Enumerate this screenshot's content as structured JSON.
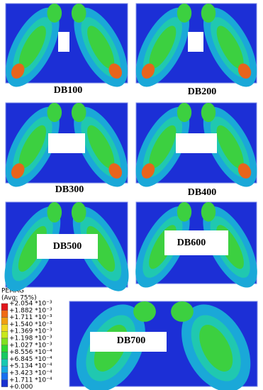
{
  "panels": [
    {
      "label": "DB100"
    },
    {
      "label": "DB200"
    },
    {
      "label": "DB300"
    },
    {
      "label": "DB400"
    },
    {
      "label": "DB500"
    },
    {
      "label": "DB600"
    },
    {
      "label": "DB700"
    }
  ],
  "legend": {
    "title": "PEMAG",
    "subtitle": "(Avg: 75%)",
    "entries": [
      "+2.054 *10⁻³",
      "+1.882 *10⁻³",
      "+1.711 *10⁻³",
      "+1.540 *10⁻³",
      "+1.369 *10⁻³",
      "+1.198 *10⁻³",
      "+1.027 *10⁻³",
      "+8.556 *10⁻⁴",
      "+6.845 *10⁻⁴",
      "+5.134 *10⁻⁴",
      "+3.423 *10⁻⁴",
      "+1.711 *10⁻⁴",
      "+0.000"
    ]
  }
}
